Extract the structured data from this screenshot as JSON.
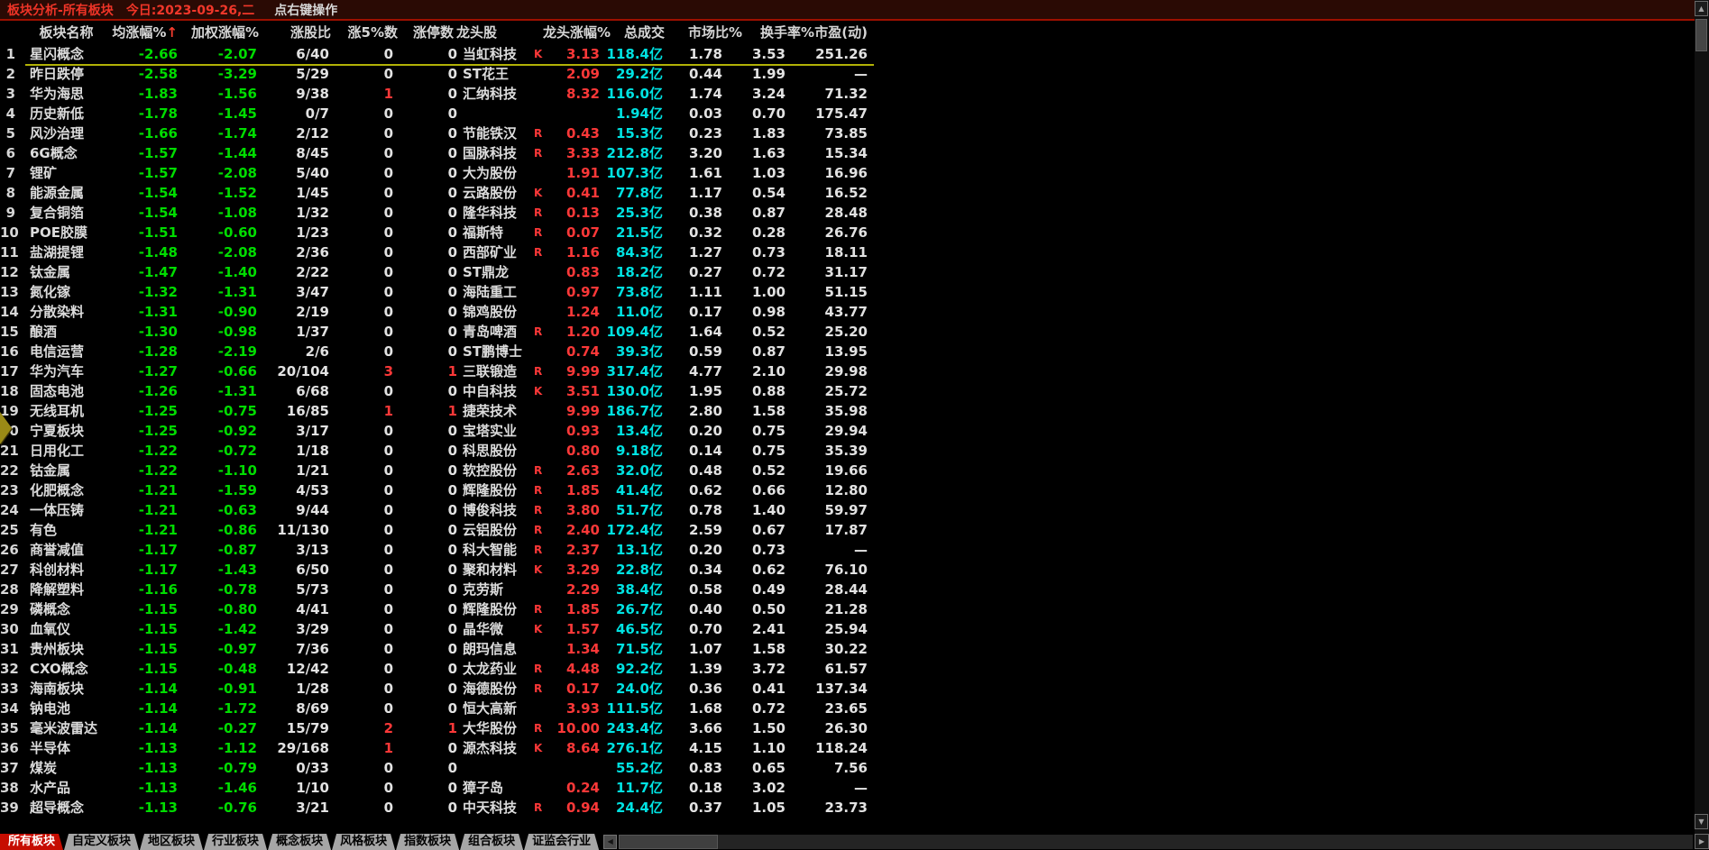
{
  "title_bar": {
    "title": "板块分析-所有板块",
    "today_label": "今日:",
    "date": "2023-09-26,二",
    "hint": "点右键操作"
  },
  "table": {
    "columns": [
      "板块名称",
      "均涨幅%",
      "加权涨幅%",
      "涨股比",
      "涨5%数",
      "涨停数",
      "龙头股",
      "龙头涨幅%",
      "总成交",
      "市场比%",
      "换手率%",
      "市盈(动)"
    ],
    "sort_arrow": "↑",
    "volume_unit": "亿",
    "selected_row": 1,
    "rows": [
      [
        "1",
        "星闪概念",
        "-2.66",
        "-2.07",
        "6/40",
        "0",
        "0",
        "当虹科技",
        "K",
        "3.13",
        "118.4亿",
        "1.78",
        "3.53",
        "251.26"
      ],
      [
        "2",
        "昨日跌停",
        "-2.58",
        "-3.29",
        "5/29",
        "0",
        "0",
        "ST花王",
        "",
        "2.09",
        "29.2亿",
        "0.44",
        "1.99",
        "—"
      ],
      [
        "3",
        "华为海思",
        "-1.83",
        "-1.56",
        "9/38",
        "1",
        "0",
        "汇纳科技",
        "",
        "8.32",
        "116.0亿",
        "1.74",
        "3.24",
        "71.32"
      ],
      [
        "4",
        "历史新低",
        "-1.78",
        "-1.45",
        "0/7",
        "0",
        "0",
        "",
        "",
        "",
        "1.94亿",
        "0.03",
        "0.70",
        "175.47"
      ],
      [
        "5",
        "风沙治理",
        "-1.66",
        "-1.74",
        "2/12",
        "0",
        "0",
        "节能铁汉",
        "R",
        "0.43",
        "15.3亿",
        "0.23",
        "1.83",
        "73.85"
      ],
      [
        "6",
        "6G概念",
        "-1.57",
        "-1.44",
        "8/45",
        "0",
        "0",
        "国脉科技",
        "R",
        "3.33",
        "212.8亿",
        "3.20",
        "1.63",
        "15.34"
      ],
      [
        "7",
        "锂矿",
        "-1.57",
        "-2.08",
        "5/40",
        "0",
        "0",
        "大为股份",
        "",
        "1.91",
        "107.3亿",
        "1.61",
        "1.03",
        "16.96"
      ],
      [
        "8",
        "能源金属",
        "-1.54",
        "-1.52",
        "1/45",
        "0",
        "0",
        "云路股份",
        "K",
        "0.41",
        "77.8亿",
        "1.17",
        "0.54",
        "16.52"
      ],
      [
        "9",
        "复合铜箔",
        "-1.54",
        "-1.08",
        "1/32",
        "0",
        "0",
        "隆华科技",
        "R",
        "0.13",
        "25.3亿",
        "0.38",
        "0.87",
        "28.48"
      ],
      [
        "10",
        "POE胶膜",
        "-1.51",
        "-0.60",
        "1/23",
        "0",
        "0",
        "福斯特",
        "R",
        "0.07",
        "21.5亿",
        "0.32",
        "0.28",
        "26.76"
      ],
      [
        "11",
        "盐湖提锂",
        "-1.48",
        "-2.08",
        "2/36",
        "0",
        "0",
        "西部矿业",
        "R",
        "1.16",
        "84.3亿",
        "1.27",
        "0.73",
        "18.11"
      ],
      [
        "12",
        "钛金属",
        "-1.47",
        "-1.40",
        "2/22",
        "0",
        "0",
        "ST鼎龙",
        "",
        "0.83",
        "18.2亿",
        "0.27",
        "0.72",
        "31.17"
      ],
      [
        "13",
        "氮化镓",
        "-1.32",
        "-1.31",
        "3/47",
        "0",
        "0",
        "海陆重工",
        "",
        "0.97",
        "73.8亿",
        "1.11",
        "1.00",
        "51.15"
      ],
      [
        "14",
        "分散染料",
        "-1.31",
        "-0.90",
        "2/19",
        "0",
        "0",
        "锦鸡股份",
        "",
        "1.24",
        "11.0亿",
        "0.17",
        "0.98",
        "43.77"
      ],
      [
        "15",
        "酿酒",
        "-1.30",
        "-0.98",
        "1/37",
        "0",
        "0",
        "青岛啤酒",
        "R",
        "1.20",
        "109.4亿",
        "1.64",
        "0.52",
        "25.20"
      ],
      [
        "16",
        "电信运营",
        "-1.28",
        "-2.19",
        "2/6",
        "0",
        "0",
        "ST鹏博士",
        "",
        "0.74",
        "39.3亿",
        "0.59",
        "0.87",
        "13.95"
      ],
      [
        "17",
        "华为汽车",
        "-1.27",
        "-0.66",
        "20/104",
        "3",
        "1",
        "三联锻造",
        "R",
        "9.99",
        "317.4亿",
        "4.77",
        "2.10",
        "29.98"
      ],
      [
        "18",
        "固态电池",
        "-1.26",
        "-1.31",
        "6/68",
        "0",
        "0",
        "中自科技",
        "K",
        "3.51",
        "130.0亿",
        "1.95",
        "0.88",
        "25.72"
      ],
      [
        "19",
        "无线耳机",
        "-1.25",
        "-0.75",
        "16/85",
        "1",
        "1",
        "捷荣技术",
        "",
        "9.99",
        "186.7亿",
        "2.80",
        "1.58",
        "35.98"
      ],
      [
        "20",
        "宁夏板块",
        "-1.25",
        "-0.92",
        "3/17",
        "0",
        "0",
        "宝塔实业",
        "",
        "0.93",
        "13.4亿",
        "0.20",
        "0.75",
        "29.94"
      ],
      [
        "21",
        "日用化工",
        "-1.22",
        "-0.72",
        "1/18",
        "0",
        "0",
        "科思股份",
        "",
        "0.80",
        "9.18亿",
        "0.14",
        "0.75",
        "35.39"
      ],
      [
        "22",
        "钴金属",
        "-1.22",
        "-1.10",
        "1/21",
        "0",
        "0",
        "软控股份",
        "R",
        "2.63",
        "32.0亿",
        "0.48",
        "0.52",
        "19.66"
      ],
      [
        "23",
        "化肥概念",
        "-1.21",
        "-1.59",
        "4/53",
        "0",
        "0",
        "辉隆股份",
        "R",
        "1.85",
        "41.4亿",
        "0.62",
        "0.66",
        "12.80"
      ],
      [
        "24",
        "一体压铸",
        "-1.21",
        "-0.63",
        "9/44",
        "0",
        "0",
        "博俊科技",
        "R",
        "3.80",
        "51.7亿",
        "0.78",
        "1.40",
        "59.97"
      ],
      [
        "25",
        "有色",
        "-1.21",
        "-0.86",
        "11/130",
        "0",
        "0",
        "云铝股份",
        "R",
        "2.40",
        "172.4亿",
        "2.59",
        "0.67",
        "17.87"
      ],
      [
        "26",
        "商誉减值",
        "-1.17",
        "-0.87",
        "3/13",
        "0",
        "0",
        "科大智能",
        "R",
        "2.37",
        "13.1亿",
        "0.20",
        "0.73",
        "—"
      ],
      [
        "27",
        "科创材料",
        "-1.17",
        "-1.43",
        "6/50",
        "0",
        "0",
        "聚和材料",
        "K",
        "3.29",
        "22.8亿",
        "0.34",
        "0.62",
        "76.10"
      ],
      [
        "28",
        "降解塑料",
        "-1.16",
        "-0.78",
        "5/73",
        "0",
        "0",
        "克劳斯",
        "",
        "2.29",
        "38.4亿",
        "0.58",
        "0.49",
        "28.44"
      ],
      [
        "29",
        "磷概念",
        "-1.15",
        "-0.80",
        "4/41",
        "0",
        "0",
        "辉隆股份",
        "R",
        "1.85",
        "26.7亿",
        "0.40",
        "0.50",
        "21.28"
      ],
      [
        "30",
        "血氧仪",
        "-1.15",
        "-1.42",
        "3/29",
        "0",
        "0",
        "晶华微",
        "K",
        "1.57",
        "46.5亿",
        "0.70",
        "2.41",
        "25.94"
      ],
      [
        "31",
        "贵州板块",
        "-1.15",
        "-0.97",
        "7/36",
        "0",
        "0",
        "朗玛信息",
        "",
        "1.34",
        "71.5亿",
        "1.07",
        "1.58",
        "30.22"
      ],
      [
        "32",
        "CXO概念",
        "-1.15",
        "-0.48",
        "12/42",
        "0",
        "0",
        "太龙药业",
        "R",
        "4.48",
        "92.2亿",
        "1.39",
        "3.72",
        "61.57"
      ],
      [
        "33",
        "海南板块",
        "-1.14",
        "-0.91",
        "1/28",
        "0",
        "0",
        "海德股份",
        "R",
        "0.17",
        "24.0亿",
        "0.36",
        "0.41",
        "137.34"
      ],
      [
        "34",
        "钠电池",
        "-1.14",
        "-1.72",
        "8/69",
        "0",
        "0",
        "恒大高新",
        "",
        "3.93",
        "111.5亿",
        "1.68",
        "0.72",
        "23.65"
      ],
      [
        "35",
        "毫米波雷达",
        "-1.14",
        "-0.27",
        "15/79",
        "2",
        "1",
        "大华股份",
        "R",
        "10.00",
        "243.4亿",
        "3.66",
        "1.50",
        "26.30"
      ],
      [
        "36",
        "半导体",
        "-1.13",
        "-1.12",
        "29/168",
        "1",
        "0",
        "源杰科技",
        "K",
        "8.64",
        "276.1亿",
        "4.15",
        "1.10",
        "118.24"
      ],
      [
        "37",
        "煤炭",
        "-1.13",
        "-0.79",
        "0/33",
        "0",
        "0",
        "",
        "",
        "",
        "55.2亿",
        "0.83",
        "0.65",
        "7.56"
      ],
      [
        "38",
        "水产品",
        "-1.13",
        "-1.46",
        "1/10",
        "0",
        "0",
        "獐子岛",
        "",
        "0.24",
        "11.7亿",
        "0.18",
        "3.02",
        "—"
      ],
      [
        "39",
        "超导概念",
        "-1.13",
        "-0.76",
        "3/21",
        "0",
        "0",
        "中天科技",
        "R",
        "0.94",
        "24.4亿",
        "0.37",
        "1.05",
        "23.73"
      ]
    ]
  },
  "tabs": {
    "active_index": 0,
    "items": [
      {
        "label": "所有板块"
      },
      {
        "label": "自定义板块"
      },
      {
        "label": "地区板块"
      },
      {
        "label": "行业板块"
      },
      {
        "label": "概念板块"
      },
      {
        "label": "风格板块"
      },
      {
        "label": "指数板块"
      },
      {
        "label": "组合板块"
      },
      {
        "label": "证监会行业"
      }
    ]
  },
  "scrollbar": {
    "up_glyph": "▲",
    "down_glyph": "▼",
    "left_glyph": "◀",
    "right_glyph": "▶"
  },
  "colors": {
    "background": "#000000",
    "titlebar_bg": "#2a0a04",
    "title_red": "#ef3427",
    "divider_red": "#9e1000",
    "gain_red": "#fb3838",
    "loss_green": "#00dc00",
    "volume_cyan": "#00e2e2",
    "text_white": "#e2e2e2",
    "selection_yellow": "#b1b106",
    "tab_active_bg": "#c60d01",
    "tab_inactive_bg": "#a6a6a6"
  }
}
